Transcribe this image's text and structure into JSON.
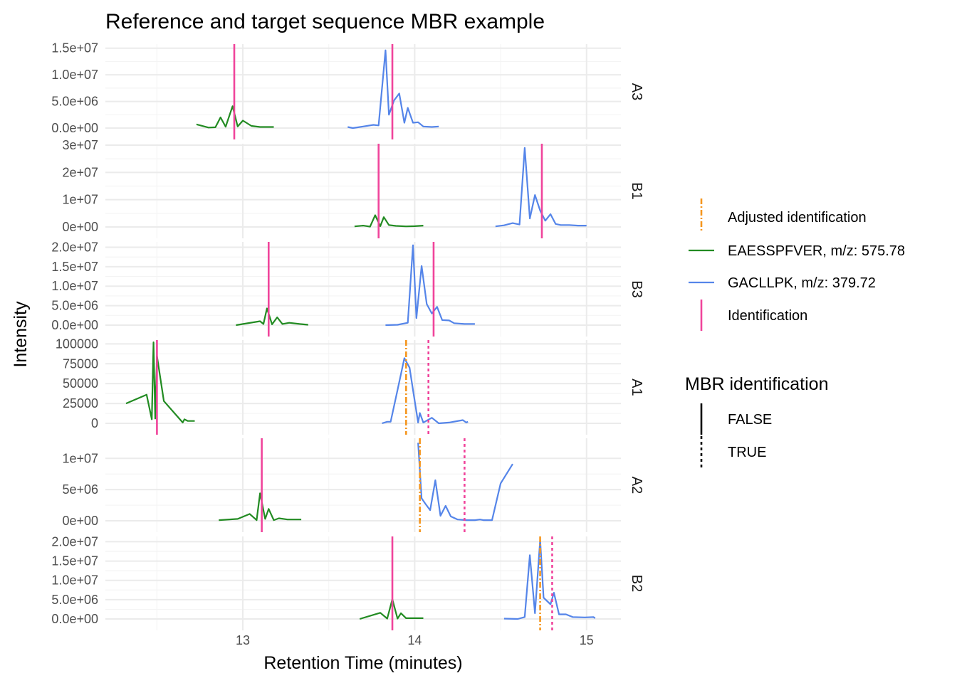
{
  "chart_data": {
    "type": "line",
    "title": "Reference and target sequence MBR example",
    "xlabel": "Retention Time (minutes)",
    "ylabel": "Intensity",
    "xlim": [
      12.2,
      15.2
    ],
    "x_ticks": [
      13,
      14,
      15
    ],
    "x_tick_labels": [
      "13",
      "14",
      "15"
    ],
    "grid": true,
    "legend_position": "right",
    "colors": {
      "EAESSPFVER": "#228B22",
      "GACLLPK": "#5585E9",
      "identification": "#F0449B",
      "adjusted": "#F5961E",
      "grid_major": "#EBEBEB",
      "grid_minor": "#F4F4F4"
    },
    "legend": {
      "items": [
        {
          "key": "adjusted",
          "label": "Adjusted identification"
        },
        {
          "key": "EAESSPFVER",
          "label": "EAESSPFVER, m/z: 575.78"
        },
        {
          "key": "GACLLPK",
          "label": "GACLLPK, m/z: 379.72"
        },
        {
          "key": "identification",
          "label": "Identification"
        }
      ],
      "mbr_title": "MBR identification",
      "mbr_items": [
        {
          "key": "solid",
          "label": "FALSE"
        },
        {
          "key": "dotted",
          "label": "TRUE"
        }
      ]
    },
    "panels": [
      {
        "name": "A3",
        "ylim": [
          0,
          15500000
        ],
        "y_ticks": [
          0,
          5000000,
          10000000,
          15000000
        ],
        "y_tick_labels": [
          "0.0e+00",
          "5.0e+06",
          "1.0e+07",
          "1.5e+07"
        ],
        "series": [
          {
            "name": "EAESSPFVER, m/z: 575.78",
            "key": "EAESSPFVER",
            "x": [
              12.73,
              12.8,
              12.84,
              12.87,
              12.9,
              12.94,
              12.97,
              13.0,
              13.05,
              13.1,
              13.18
            ],
            "y": [
              700000,
              100000,
              150000,
              2000000,
              250000,
              4100000,
              300000,
              1400000,
              400000,
              200000,
              200000
            ]
          },
          {
            "name": "GACLLPK, m/z: 379.72",
            "key": "GACLLPK",
            "x": [
              13.61,
              13.64,
              13.7,
              13.76,
              13.79,
              13.83,
              13.85,
              13.88,
              13.91,
              13.94,
              13.96,
              13.99,
              14.02,
              14.05,
              14.1,
              14.14
            ],
            "y": [
              200000,
              0,
              300000,
              600000,
              500000,
              14600000,
              2500000,
              5200000,
              6500000,
              1000000,
              3800000,
              1000000,
              1100000,
              300000,
              200000,
              300000
            ]
          }
        ],
        "ids": [
          {
            "x": 12.95,
            "type": "identification",
            "mbr": false
          },
          {
            "x": 13.87,
            "type": "identification",
            "mbr": false
          }
        ]
      },
      {
        "name": "B1",
        "ylim": [
          0,
          30000000
        ],
        "y_ticks": [
          0,
          10000000,
          20000000,
          30000000
        ],
        "y_tick_labels": [
          "0e+00",
          "1e+07",
          "2e+07",
          "3e+07"
        ],
        "series": [
          {
            "name": "EAESSPFVER, m/z: 575.78",
            "key": "EAESSPFVER",
            "x": [
              13.65,
              13.7,
              13.74,
              13.77,
              13.8,
              13.82,
              13.85,
              13.89,
              13.95,
              14.0,
              14.05
            ],
            "y": [
              200000,
              500000,
              100000,
              4300000,
              300000,
              3600000,
              700000,
              400000,
              200000,
              300000,
              500000
            ]
          },
          {
            "name": "GACLLPK, m/z: 379.72",
            "key": "GACLLPK",
            "x": [
              14.47,
              14.52,
              14.57,
              14.61,
              14.64,
              14.67,
              14.7,
              14.73,
              14.76,
              14.79,
              14.82,
              14.85,
              14.9,
              14.95,
              15.0
            ],
            "y": [
              200000,
              600000,
              1400000,
              900000,
              29000000,
              3100000,
              11700000,
              6000000,
              2300000,
              4700000,
              1100000,
              700000,
              700000,
              500000,
              500000
            ]
          }
        ],
        "ids": [
          {
            "x": 13.79,
            "type": "identification",
            "mbr": false
          },
          {
            "x": 14.74,
            "type": "identification",
            "mbr": false
          }
        ]
      },
      {
        "name": "B3",
        "ylim": [
          0,
          21000000
        ],
        "y_ticks": [
          0,
          5000000,
          10000000,
          15000000,
          20000000
        ],
        "y_tick_labels": [
          "0.0e+00",
          "5.0e+06",
          "1.0e+07",
          "1.5e+07",
          "2.0e+07"
        ],
        "series": [
          {
            "name": "EAESSPFVER, m/z: 575.78",
            "key": "EAESSPFVER",
            "x": [
              12.96,
              13.1,
              13.12,
              13.14,
              13.17,
              13.2,
              13.23,
              13.27,
              13.33,
              13.38
            ],
            "y": [
              0,
              1000000,
              300000,
              4300000,
              200000,
              2000000,
              300000,
              600000,
              300000,
              100000
            ]
          },
          {
            "name": "GACLLPK, m/z: 379.72",
            "key": "GACLLPK",
            "x": [
              13.83,
              13.9,
              13.96,
              13.99,
              14.01,
              14.04,
              14.07,
              14.1,
              14.13,
              14.16,
              14.2,
              14.23,
              14.29,
              14.35
            ],
            "y": [
              0,
              100000,
              600000,
              20500000,
              1800000,
              15200000,
              5400000,
              3000000,
              4700000,
              1300000,
              1200000,
              500000,
              300000,
              300000
            ]
          }
        ],
        "ids": [
          {
            "x": 13.15,
            "type": "identification",
            "mbr": false
          },
          {
            "x": 14.11,
            "type": "identification",
            "mbr": false
          }
        ]
      },
      {
        "name": "A1",
        "ylim": [
          0,
          103000
        ],
        "y_ticks": [
          0,
          25000,
          50000,
          75000,
          100000
        ],
        "y_tick_labels": [
          "0",
          "25000",
          "50000",
          "75000",
          "100000"
        ],
        "series": [
          {
            "name": "EAESSPFVER, m/z: 575.78",
            "key": "EAESSPFVER",
            "x": [
              12.32,
              12.44,
              12.47,
              12.48,
              12.49,
              12.5,
              12.54,
              12.65,
              12.66,
              12.68,
              12.72
            ],
            "y": [
              25000,
              36000,
              5000,
              102000,
              6000,
              85000,
              28000,
              1000,
              5000,
              3000,
              3000
            ]
          },
          {
            "name": "GACLLPK, m/z: 379.72",
            "key": "GACLLPK",
            "x": [
              13.81,
              13.84,
              13.86,
              13.9,
              13.94,
              13.97,
              13.99,
              14.02,
              14.03,
              14.05,
              14.1,
              14.14,
              14.2,
              14.28,
              14.3,
              14.31
            ],
            "y": [
              0,
              2000,
              2000,
              42000,
              82000,
              70000,
              42000,
              1000,
              13000,
              1000,
              7000,
              0,
              1000,
              4000,
              1000,
              2000
            ]
          }
        ],
        "ids": [
          {
            "x": 12.5,
            "type": "identification",
            "mbr": false
          },
          {
            "x": 13.95,
            "type": "adjusted",
            "mbr": true
          },
          {
            "x": 14.08,
            "type": "identification",
            "mbr": true
          }
        ]
      },
      {
        "name": "A2",
        "ylim": [
          0,
          13000000
        ],
        "y_ticks": [
          0,
          5000000,
          10000000
        ],
        "y_tick_labels": [
          "0e+00",
          "5e+06",
          "1e+07"
        ],
        "series": [
          {
            "name": "EAESSPFVER, m/z: 575.78",
            "key": "EAESSPFVER",
            "x": [
              12.86,
              12.97,
              13.04,
              13.08,
              13.1,
              13.13,
              13.15,
              13.18,
              13.21,
              13.26,
              13.34
            ],
            "y": [
              100000,
              300000,
              1100000,
              100000,
              4400000,
              300000,
              1900000,
              100000,
              400000,
              200000,
              200000
            ]
          },
          {
            "name": "GACLLPK, m/z: 379.72",
            "key": "GACLLPK",
            "x": [
              14.02,
              14.04,
              14.06,
              14.09,
              14.12,
              14.15,
              14.18,
              14.21,
              14.25,
              14.3,
              14.35,
              14.38,
              14.4,
              14.45,
              14.5,
              14.57
            ],
            "y": [
              12500000,
              3600000,
              2800000,
              1700000,
              6500000,
              800000,
              2400000,
              700000,
              200000,
              100000,
              100000,
              200000,
              100000,
              100000,
              6000000,
              9100000
            ]
          }
        ],
        "ids": [
          {
            "x": 13.11,
            "type": "identification",
            "mbr": false
          },
          {
            "x": 14.03,
            "type": "adjusted",
            "mbr": true
          },
          {
            "x": 14.29,
            "type": "identification",
            "mbr": true
          }
        ]
      },
      {
        "name": "B2",
        "ylim": [
          0,
          21000000
        ],
        "y_ticks": [
          0,
          5000000,
          10000000,
          15000000,
          20000000
        ],
        "y_tick_labels": [
          "0.0e+00",
          "5.0e+06",
          "1.0e+07",
          "1.5e+07",
          "2.0e+07"
        ],
        "series": [
          {
            "name": "EAESSPFVER, m/z: 575.78",
            "key": "EAESSPFVER",
            "x": [
              13.68,
              13.8,
              13.84,
              13.87,
              13.9,
              13.92,
              13.95,
              14.0,
              14.05
            ],
            "y": [
              0,
              1600000,
              100000,
              5100000,
              100000,
              1500000,
              200000,
              200000,
              200000
            ]
          },
          {
            "name": "GACLLPK, m/z: 379.72",
            "key": "GACLLPK",
            "x": [
              14.52,
              14.6,
              14.64,
              14.67,
              14.7,
              14.73,
              14.75,
              14.79,
              14.81,
              14.84,
              14.88,
              14.92,
              14.99,
              15.04,
              15.05
            ],
            "y": [
              100000,
              0,
              500000,
              16500000,
              1500000,
              20500000,
              5500000,
              3800000,
              6800000,
              1200000,
              1200000,
              500000,
              400000,
              500000,
              200000
            ]
          }
        ],
        "ids": [
          {
            "x": 13.87,
            "type": "identification",
            "mbr": false
          },
          {
            "x": 14.73,
            "type": "adjusted",
            "mbr": true
          },
          {
            "x": 14.8,
            "type": "identification",
            "mbr": true
          }
        ]
      }
    ]
  }
}
